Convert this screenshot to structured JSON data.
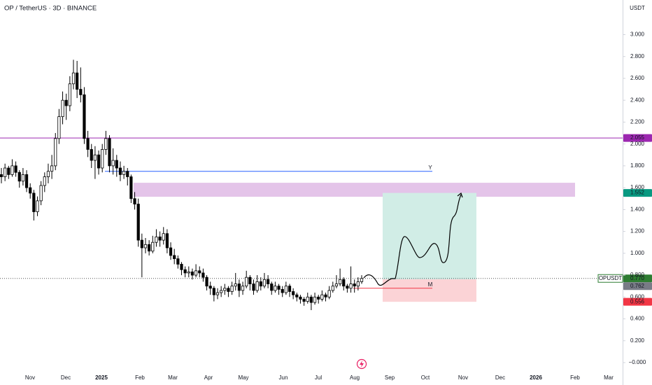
{
  "chart_data": {
    "type": "candlestick",
    "title": "OP / TetherUS · 3D · BINANCE",
    "y_unit": "USDT",
    "ylim": [
      -0.05,
      3.2
    ],
    "yticks": [
      {
        "value": 0,
        "label": "−0.000"
      },
      {
        "value": 0.2,
        "label": "0.200"
      },
      {
        "value": 0.4,
        "label": "0.400"
      },
      {
        "value": 0.6,
        "label": "0.600"
      },
      {
        "value": 0.8,
        "label": "0.800"
      },
      {
        "value": 1.0,
        "label": "1.000"
      },
      {
        "value": 1.2,
        "label": "1.200"
      },
      {
        "value": 1.4,
        "label": "1.400"
      },
      {
        "value": 1.6,
        "label": "1.600"
      },
      {
        "value": 1.8,
        "label": "1.800"
      },
      {
        "value": 2.0,
        "label": "2.000"
      },
      {
        "value": 2.2,
        "label": "2.200"
      },
      {
        "value": 2.4,
        "label": "2.400"
      },
      {
        "value": 2.6,
        "label": "2.600"
      },
      {
        "value": 2.8,
        "label": "2.800"
      },
      {
        "value": 3.0,
        "label": "3.000"
      }
    ],
    "xticks": [
      "Nov",
      "Dec",
      "2025",
      "Feb",
      "Mar",
      "Apr",
      "May",
      "Jun",
      "Jul",
      "Aug",
      "Sep",
      "Oct",
      "Nov",
      "Dec",
      "2026",
      "Feb",
      "Mar"
    ],
    "up_color": "#ffffff",
    "down_color": "#000000",
    "ohlc": [
      [
        1.72,
        1.78,
        1.64,
        1.7
      ],
      [
        1.7,
        1.82,
        1.66,
        1.78
      ],
      [
        1.78,
        1.8,
        1.68,
        1.72
      ],
      [
        1.72,
        1.86,
        1.7,
        1.8
      ],
      [
        1.8,
        1.84,
        1.7,
        1.74
      ],
      [
        1.74,
        1.76,
        1.6,
        1.66
      ],
      [
        1.66,
        1.78,
        1.62,
        1.72
      ],
      [
        1.72,
        1.76,
        1.56,
        1.6
      ],
      [
        1.6,
        1.64,
        1.5,
        1.55
      ],
      [
        1.55,
        1.58,
        1.3,
        1.38
      ],
      [
        1.38,
        1.52,
        1.34,
        1.48
      ],
      [
        1.48,
        1.66,
        1.44,
        1.62
      ],
      [
        1.62,
        1.74,
        1.56,
        1.7
      ],
      [
        1.7,
        1.82,
        1.64,
        1.75
      ],
      [
        1.75,
        1.9,
        1.68,
        1.8
      ],
      [
        1.8,
        2.1,
        1.76,
        2.05
      ],
      [
        2.05,
        2.32,
        2.0,
        2.25
      ],
      [
        2.25,
        2.48,
        2.18,
        2.4
      ],
      [
        2.4,
        2.46,
        2.22,
        2.35
      ],
      [
        2.35,
        2.62,
        2.3,
        2.55
      ],
      [
        2.55,
        2.77,
        2.5,
        2.65
      ],
      [
        2.65,
        2.76,
        2.42,
        2.5
      ],
      [
        2.5,
        2.7,
        2.38,
        2.45
      ],
      [
        2.45,
        2.52,
        2.0,
        2.05
      ],
      [
        2.05,
        2.12,
        1.88,
        1.95
      ],
      [
        1.95,
        2.0,
        1.78,
        1.85
      ],
      [
        1.85,
        1.98,
        1.68,
        1.9
      ],
      [
        1.9,
        1.94,
        1.72,
        1.78
      ],
      [
        1.78,
        2.0,
        1.74,
        1.95
      ],
      [
        1.95,
        2.12,
        1.9,
        2.05
      ],
      [
        2.05,
        2.08,
        1.74,
        1.8
      ],
      [
        1.8,
        1.96,
        1.72,
        1.85
      ],
      [
        1.85,
        1.9,
        1.7,
        1.78
      ],
      [
        1.78,
        1.84,
        1.66,
        1.72
      ],
      [
        1.72,
        1.8,
        1.68,
        1.75
      ],
      [
        1.75,
        1.78,
        1.62,
        1.7
      ],
      [
        1.7,
        1.72,
        1.46,
        1.5
      ],
      [
        1.5,
        1.56,
        1.4,
        1.45
      ],
      [
        1.45,
        1.5,
        1.06,
        1.12
      ],
      [
        1.12,
        1.18,
        0.78,
        1.05
      ],
      [
        1.05,
        1.14,
        1.0,
        1.08
      ],
      [
        1.08,
        1.12,
        0.98,
        1.02
      ],
      [
        1.02,
        1.16,
        1.0,
        1.1
      ],
      [
        1.1,
        1.22,
        1.06,
        1.15
      ],
      [
        1.15,
        1.2,
        1.06,
        1.12
      ],
      [
        1.12,
        1.24,
        1.08,
        1.18
      ],
      [
        1.18,
        1.22,
        1.0,
        1.05
      ],
      [
        1.05,
        1.1,
        0.94,
        0.98
      ],
      [
        0.98,
        1.04,
        0.9,
        0.95
      ],
      [
        0.95,
        0.98,
        0.86,
        0.9
      ],
      [
        0.9,
        0.92,
        0.8,
        0.85
      ],
      [
        0.85,
        0.88,
        0.78,
        0.82
      ],
      [
        0.82,
        0.88,
        0.78,
        0.83
      ],
      [
        0.83,
        0.86,
        0.76,
        0.8
      ],
      [
        0.8,
        0.9,
        0.78,
        0.84
      ],
      [
        0.84,
        0.88,
        0.78,
        0.82
      ],
      [
        0.82,
        0.86,
        0.74,
        0.78
      ],
      [
        0.78,
        0.8,
        0.66,
        0.7
      ],
      [
        0.7,
        0.74,
        0.62,
        0.68
      ],
      [
        0.68,
        0.7,
        0.56,
        0.62
      ],
      [
        0.62,
        0.68,
        0.58,
        0.64
      ],
      [
        0.64,
        0.7,
        0.6,
        0.66
      ],
      [
        0.66,
        0.72,
        0.62,
        0.68
      ],
      [
        0.68,
        0.7,
        0.6,
        0.65
      ],
      [
        0.65,
        0.74,
        0.62,
        0.7
      ],
      [
        0.7,
        0.82,
        0.66,
        0.72
      ],
      [
        0.72,
        0.76,
        0.6,
        0.66
      ],
      [
        0.66,
        0.74,
        0.62,
        0.7
      ],
      [
        0.7,
        0.84,
        0.68,
        0.78
      ],
      [
        0.78,
        0.8,
        0.66,
        0.72
      ],
      [
        0.72,
        0.76,
        0.62,
        0.66
      ],
      [
        0.66,
        0.8,
        0.64,
        0.74
      ],
      [
        0.74,
        0.78,
        0.66,
        0.7
      ],
      [
        0.7,
        0.82,
        0.68,
        0.76
      ],
      [
        0.76,
        0.8,
        0.68,
        0.72
      ],
      [
        0.72,
        0.74,
        0.62,
        0.66
      ],
      [
        0.66,
        0.74,
        0.64,
        0.7
      ],
      [
        0.7,
        0.72,
        0.62,
        0.67
      ],
      [
        0.67,
        0.7,
        0.6,
        0.64
      ],
      [
        0.64,
        0.74,
        0.62,
        0.7
      ],
      [
        0.7,
        0.72,
        0.6,
        0.65
      ],
      [
        0.65,
        0.68,
        0.58,
        0.62
      ],
      [
        0.62,
        0.64,
        0.56,
        0.6
      ],
      [
        0.6,
        0.62,
        0.54,
        0.58
      ],
      [
        0.58,
        0.6,
        0.52,
        0.56
      ],
      [
        0.56,
        0.64,
        0.54,
        0.6
      ],
      [
        0.6,
        0.62,
        0.48,
        0.55
      ],
      [
        0.55,
        0.64,
        0.53,
        0.6
      ],
      [
        0.6,
        0.62,
        0.54,
        0.58
      ],
      [
        0.58,
        0.66,
        0.56,
        0.62
      ],
      [
        0.62,
        0.64,
        0.56,
        0.6
      ],
      [
        0.6,
        0.7,
        0.58,
        0.66
      ],
      [
        0.66,
        0.74,
        0.64,
        0.7
      ],
      [
        0.7,
        0.8,
        0.68,
        0.72
      ],
      [
        0.72,
        0.86,
        0.7,
        0.76
      ],
      [
        0.76,
        0.78,
        0.66,
        0.7
      ],
      [
        0.7,
        0.72,
        0.64,
        0.68
      ],
      [
        0.68,
        0.88,
        0.64,
        0.72
      ],
      [
        0.72,
        0.76,
        0.64,
        0.7
      ],
      [
        0.7,
        0.78,
        0.66,
        0.74
      ],
      [
        0.74,
        0.8,
        0.72,
        0.77
      ]
    ],
    "resistance": {
      "value": 2.055,
      "color": "#9c27b0"
    },
    "level_y": {
      "value": 1.75,
      "label": "Y",
      "color": "#2962ff"
    },
    "level_m": {
      "value": 0.68,
      "label": "M",
      "color": "#f23645"
    },
    "zone": {
      "low": 1.517,
      "high": 1.645,
      "color": "#e1bee7"
    },
    "position": {
      "entry": 0.762,
      "target": 1.552,
      "stop": 0.556,
      "profit_color": "#d1ede6",
      "loss_color": "#fbd3d6"
    },
    "last_price": 0.77,
    "price_tags": [
      {
        "value": 2.055,
        "color": "#9c27b0"
      },
      {
        "value": 1.552,
        "color": "#089981"
      },
      {
        "name": "OPUSDT",
        "value": 0.77,
        "label": "0.770",
        "color": "#2e7d32"
      },
      {
        "value": 0.762,
        "label": "0.762",
        "color": "#787b86"
      },
      {
        "value": 0.556,
        "label": "0.556",
        "color": "#f23645"
      }
    ]
  }
}
